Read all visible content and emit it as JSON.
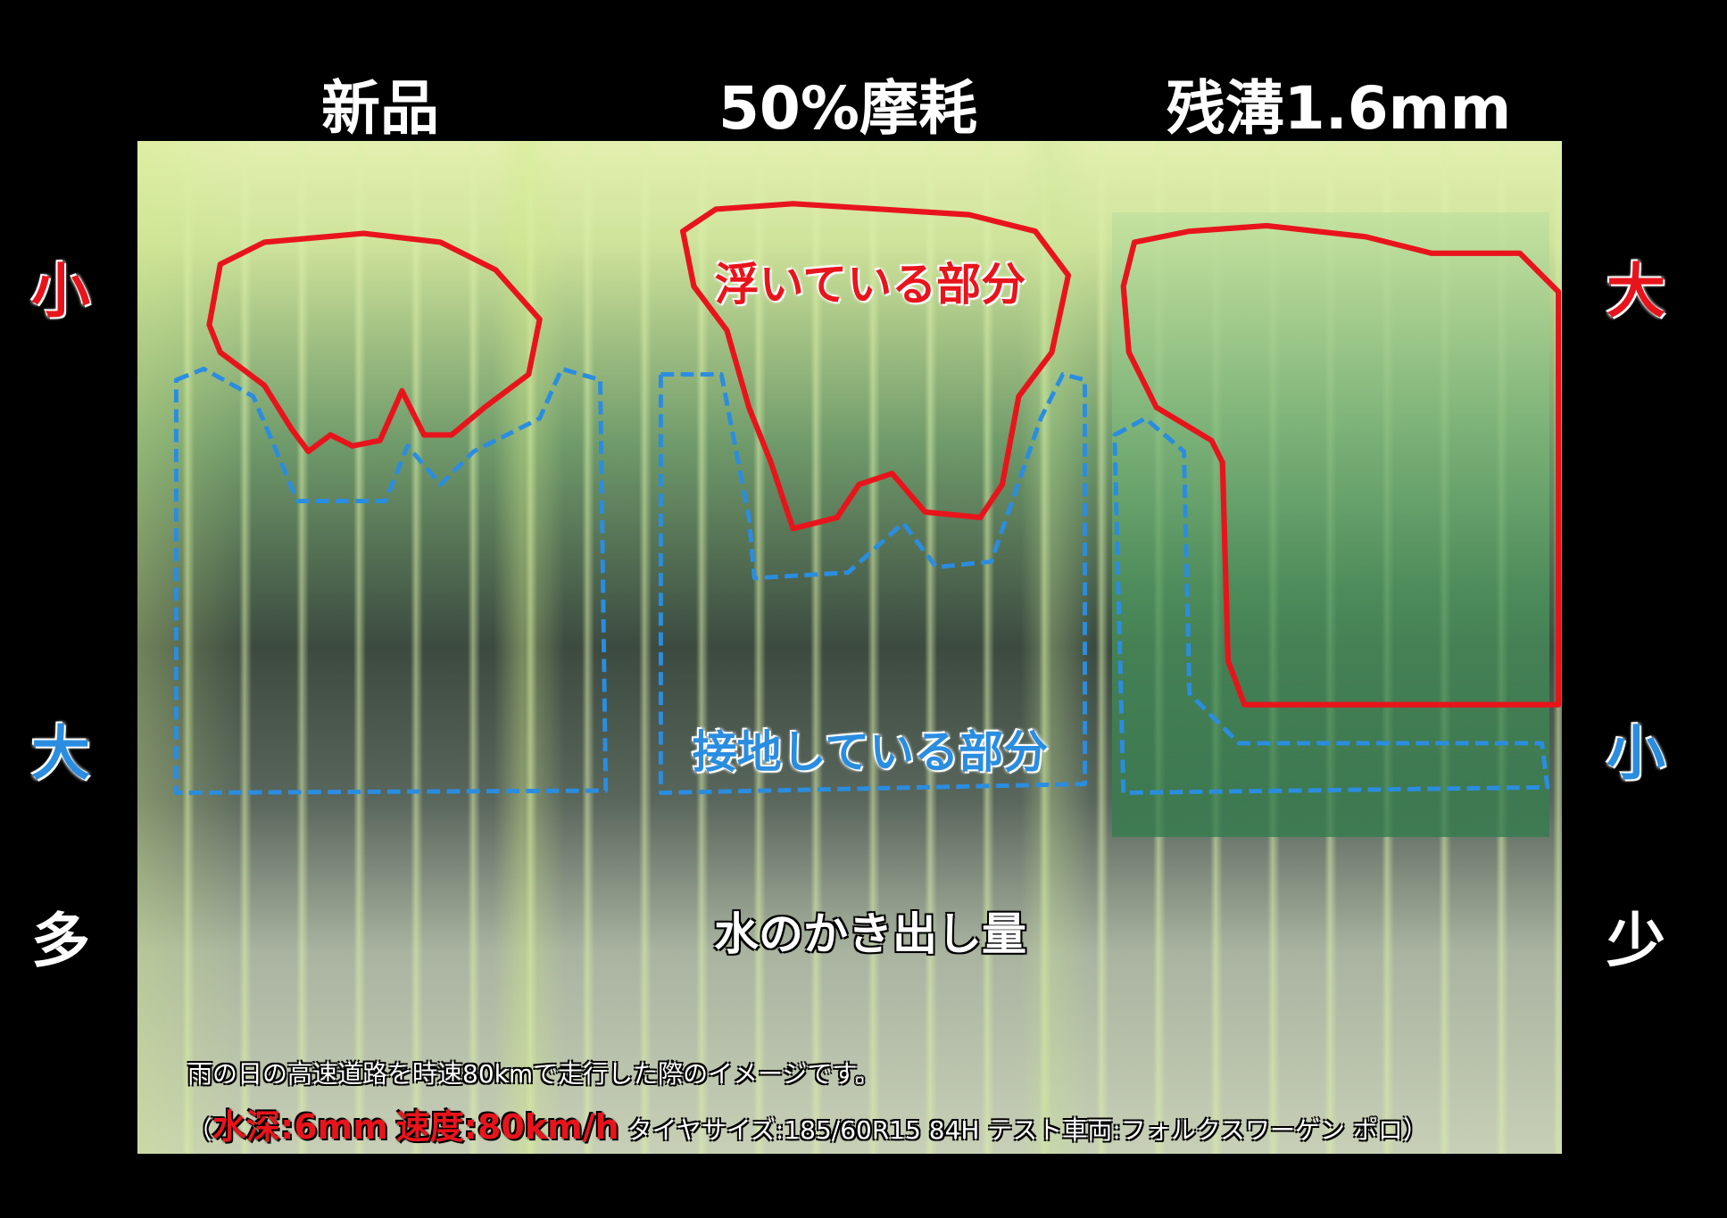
{
  "headers": {
    "new": "新品",
    "half_worn": "50%摩耗",
    "remaining": "残溝1.6mm"
  },
  "left_labels": {
    "top": "小",
    "middle": "大",
    "bottom": "多"
  },
  "right_labels": {
    "top": "大",
    "middle": "小",
    "bottom": "少"
  },
  "inner_labels": {
    "floating": "浮いている部分",
    "contact": "接地している部分",
    "water": "水のかき出し量"
  },
  "notes": {
    "line1": "雨の日の高速道路を時速80kmで走行した際のイメージです。",
    "open_paren": "（",
    "water_depth": "水深:6mm",
    "speed": "速度:80km/h",
    "details": "タイヤサイズ:185/60R15 84H テスト車両:フォルクスワーゲン ポロ）"
  },
  "colors": {
    "floating": "#e8141c",
    "contact": "#2a8de0"
  }
}
